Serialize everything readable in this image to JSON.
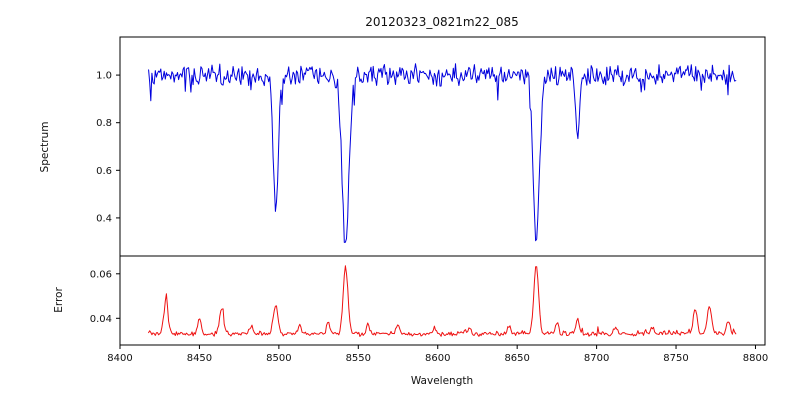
{
  "figure": {
    "title": "20120323_0821m22_085",
    "xlabel": "Wavelength",
    "background": "#ffffff"
  },
  "chart_data": [
    {
      "id": "spectrum-panel",
      "type": "line",
      "title": "20120323_0821m22_085",
      "ylabel": "Spectrum",
      "line_color": "#0000dd",
      "xlim": [
        8400,
        8806
      ],
      "ylim": [
        0.24,
        1.16
      ],
      "x_start": 8418,
      "x_end": 8788,
      "x_step": 0.7,
      "yticks": [
        0.4,
        0.6,
        0.8,
        1.0
      ],
      "ytick_labels": [
        "0.4",
        "0.6",
        "0.8",
        "1.0"
      ],
      "grid": false,
      "legend": null,
      "continuum": 1.0,
      "noise_amplitude": 0.05,
      "absorption_lines": [
        {
          "center": 8498,
          "depth": 0.58,
          "sigma": 1.6
        },
        {
          "center": 8542,
          "depth": 0.7,
          "sigma": 2.2
        },
        {
          "center": 8662,
          "depth": 0.68,
          "sigma": 2.0
        },
        {
          "center": 8688,
          "depth": 0.26,
          "sigma": 1.2
        }
      ]
    },
    {
      "id": "error-panel",
      "type": "line",
      "ylabel": "Error",
      "xlabel": "Wavelength",
      "line_color": "#ee1111",
      "xlim": [
        8400,
        8806
      ],
      "ylim": [
        0.028,
        0.068
      ],
      "x_start": 8418,
      "x_end": 8788,
      "x_step": 0.7,
      "yticks": [
        0.04,
        0.06
      ],
      "ytick_labels": [
        "0.04",
        "0.06"
      ],
      "xticks": [
        8400,
        8450,
        8500,
        8550,
        8600,
        8650,
        8700,
        8750,
        8800
      ],
      "xtick_labels": [
        "8400",
        "8450",
        "8500",
        "8550",
        "8600",
        "8650",
        "8700",
        "8750",
        "8800"
      ],
      "grid": false,
      "legend": null,
      "baseline": 0.033,
      "noise_amplitude": 0.0012,
      "peaks": [
        {
          "center": 8429,
          "height": 0.016,
          "sigma": 1.2
        },
        {
          "center": 8450,
          "height": 0.007,
          "sigma": 1.0
        },
        {
          "center": 8464,
          "height": 0.011,
          "sigma": 1.3
        },
        {
          "center": 8483,
          "height": 0.004,
          "sigma": 1.0
        },
        {
          "center": 8498,
          "height": 0.013,
          "sigma": 1.4
        },
        {
          "center": 8513,
          "height": 0.004,
          "sigma": 1.0
        },
        {
          "center": 8531,
          "height": 0.005,
          "sigma": 1.0
        },
        {
          "center": 8542,
          "height": 0.03,
          "sigma": 1.5
        },
        {
          "center": 8556,
          "height": 0.005,
          "sigma": 1.0
        },
        {
          "center": 8575,
          "height": 0.004,
          "sigma": 1.0
        },
        {
          "center": 8598,
          "height": 0.003,
          "sigma": 1.0
        },
        {
          "center": 8620,
          "height": 0.003,
          "sigma": 1.0
        },
        {
          "center": 8645,
          "height": 0.004,
          "sigma": 1.0
        },
        {
          "center": 8662,
          "height": 0.031,
          "sigma": 1.5
        },
        {
          "center": 8675,
          "height": 0.005,
          "sigma": 1.0
        },
        {
          "center": 8688,
          "height": 0.006,
          "sigma": 1.1
        },
        {
          "center": 8712,
          "height": 0.003,
          "sigma": 1.0
        },
        {
          "center": 8735,
          "height": 0.003,
          "sigma": 1.0
        },
        {
          "center": 8762,
          "height": 0.011,
          "sigma": 1.3
        },
        {
          "center": 8771,
          "height": 0.013,
          "sigma": 1.3
        },
        {
          "center": 8783,
          "height": 0.006,
          "sigma": 1.1
        }
      ]
    }
  ]
}
